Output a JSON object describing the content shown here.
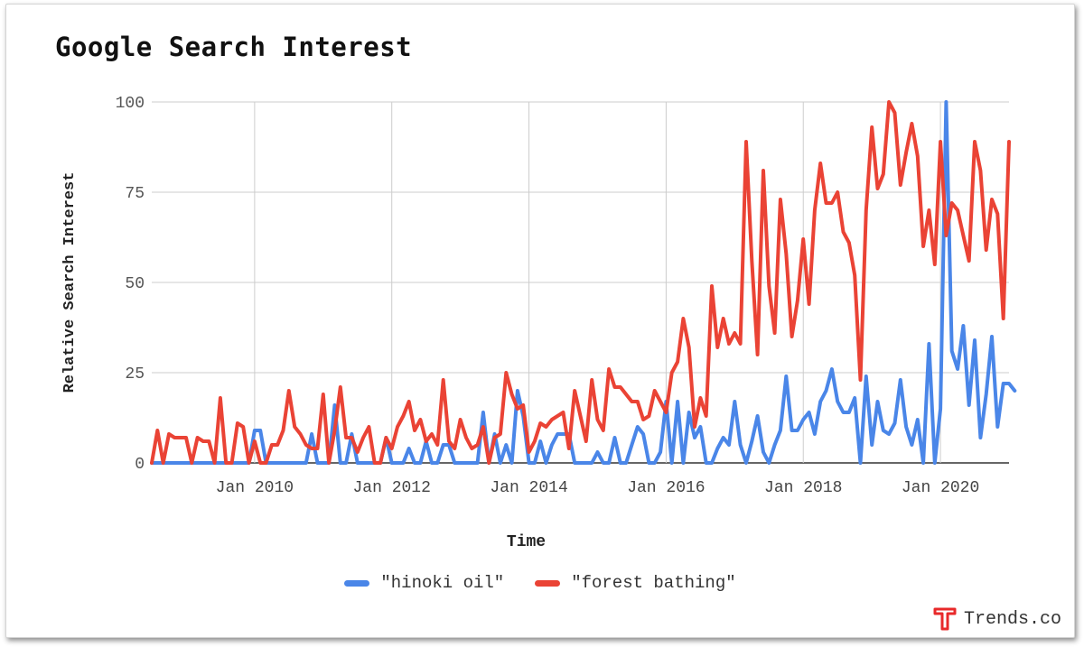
{
  "title": "Google Search Interest",
  "brand": {
    "name": "Trends.co",
    "icon": "t-logo-icon",
    "color": "#e8292a"
  },
  "chart_data": {
    "type": "line",
    "title": "Google Search Interest",
    "xlabel": "Time",
    "ylabel": "Relative Search Interest",
    "ylim": [
      0,
      100
    ],
    "yticks": [
      0,
      25,
      50,
      75,
      100
    ],
    "xlim": [
      "2008-07",
      "2021-01"
    ],
    "xticks": [
      {
        "date": "2010-01",
        "label": "Jan 2010"
      },
      {
        "date": "2012-01",
        "label": "Jan 2012"
      },
      {
        "date": "2014-01",
        "label": "Jan 2014"
      },
      {
        "date": "2016-01",
        "label": "Jan 2016"
      },
      {
        "date": "2018-01",
        "label": "Jan 2018"
      },
      {
        "date": "2020-01",
        "label": "Jan 2020"
      }
    ],
    "grid": true,
    "legend_position": "bottom",
    "x_start": "2008-07",
    "x_interval": "month",
    "series": [
      {
        "name": "\"hinoki oil\"",
        "color": "#4a86e8",
        "values": [
          0,
          0,
          0,
          0,
          0,
          0,
          0,
          0,
          0,
          0,
          0,
          0,
          0,
          0,
          0,
          0,
          0,
          0,
          9,
          9,
          0,
          0,
          0,
          0,
          0,
          0,
          0,
          0,
          8,
          0,
          0,
          0,
          16,
          0,
          0,
          8,
          0,
          0,
          0,
          0,
          0,
          7,
          0,
          0,
          0,
          4,
          0,
          0,
          6,
          0,
          0,
          5,
          5,
          0,
          0,
          0,
          0,
          0,
          14,
          0,
          8,
          0,
          5,
          0,
          20,
          13,
          0,
          0,
          6,
          0,
          5,
          8,
          8,
          8,
          0,
          0,
          0,
          0,
          3,
          0,
          0,
          7,
          0,
          0,
          5,
          10,
          8,
          0,
          0,
          3,
          17,
          0,
          17,
          0,
          14,
          7,
          10,
          0,
          0,
          4,
          7,
          5,
          17,
          5,
          0,
          6,
          13,
          3,
          0,
          5,
          9,
          24,
          9,
          9,
          12,
          14,
          8,
          17,
          20,
          26,
          17,
          14,
          14,
          18,
          0,
          24,
          5,
          17,
          9,
          8,
          11,
          23,
          10,
          5,
          12,
          0,
          33,
          0,
          15,
          100,
          31,
          26,
          38,
          16,
          34,
          7,
          19,
          35,
          10,
          22,
          22,
          20
        ]
      },
      {
        "name": "\"forest bathing\"",
        "color": "#ea4335",
        "values": [
          0,
          9,
          0,
          8,
          7,
          7,
          7,
          0,
          7,
          6,
          6,
          0,
          18,
          0,
          0,
          11,
          10,
          0,
          6,
          0,
          0,
          5,
          5,
          9,
          20,
          10,
          8,
          5,
          4,
          4,
          19,
          0,
          9,
          21,
          7,
          7,
          3,
          7,
          10,
          0,
          0,
          7,
          4,
          10,
          13,
          17,
          9,
          12,
          6,
          8,
          5,
          23,
          6,
          4,
          12,
          7,
          4,
          5,
          10,
          0,
          7,
          8,
          25,
          19,
          15,
          16,
          3,
          6,
          11,
          10,
          12,
          13,
          14,
          4,
          20,
          13,
          6,
          23,
          12,
          9,
          26,
          21,
          21,
          19,
          17,
          17,
          12,
          13,
          20,
          17,
          14,
          25,
          28,
          40,
          32,
          10,
          18,
          13,
          49,
          32,
          40,
          33,
          36,
          33,
          89,
          56,
          30,
          81,
          49,
          36,
          73,
          58,
          35,
          45,
          62,
          44,
          70,
          83,
          72,
          72,
          75,
          64,
          61,
          52,
          23,
          70,
          93,
          76,
          80,
          100,
          97,
          77,
          86,
          94,
          85,
          60,
          70,
          55,
          89,
          63,
          72,
          70,
          63,
          56,
          89,
          81,
          59,
          73,
          69,
          40,
          89
        ]
      }
    ]
  }
}
